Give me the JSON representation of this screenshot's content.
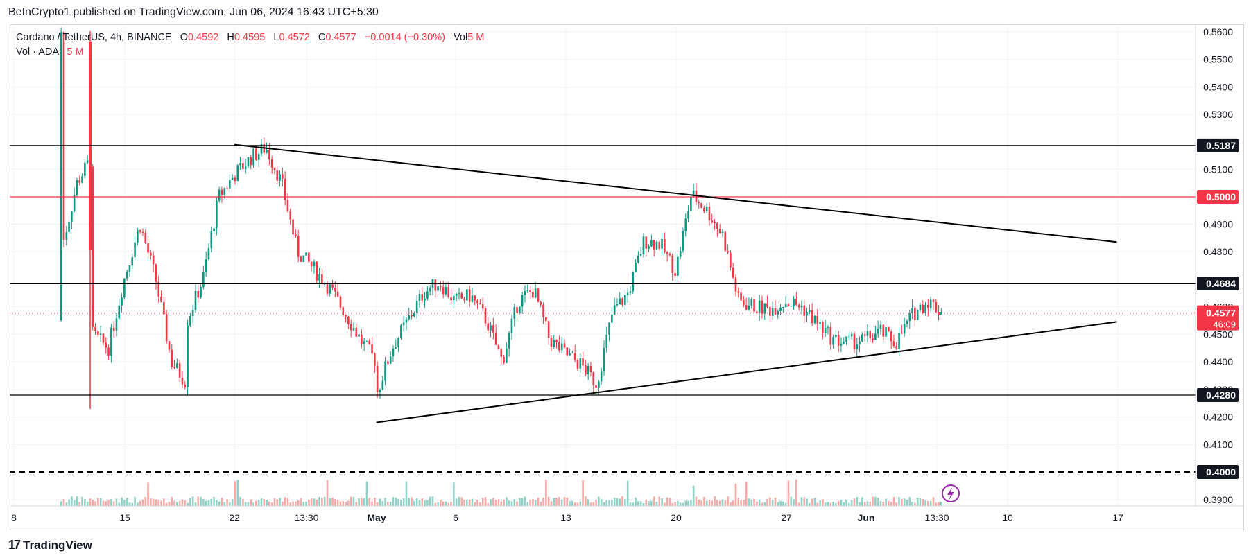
{
  "header": {
    "published": "BeInCrypto1 published on TradingView.com, Jun 06, 2024 16:43 UTC+5:30"
  },
  "legend": {
    "symbol": "Cardano / TetherUS, 4h, BINANCE",
    "o_label": "O",
    "o_value": "0.4592",
    "h_label": "H",
    "h_value": "0.4595",
    "l_label": "L",
    "l_value": "0.4572",
    "c_label": "C",
    "c_value": "0.4577",
    "change": "−0.0014 (−0.30%)",
    "vol_label": "Vol",
    "vol_value": "5 M",
    "vol_line_label": "Vol · ADA",
    "vol_line_value": "5 M"
  },
  "footer": {
    "brand": "TradingView",
    "logo_mark": "17"
  },
  "colors": {
    "up": "#089981",
    "down": "#f23645",
    "level_red": "#f23645",
    "black": "#000000",
    "grid": "#f0f3fa"
  },
  "chart_data": {
    "type": "candlestick",
    "symbol": "Cardano / TetherUS",
    "interval": "4h",
    "exchange": "BINANCE",
    "ylim": [
      0.385,
      0.566
    ],
    "y_ticks": [
      "0.5600",
      "0.5500",
      "0.5400",
      "0.5300",
      "0.5100",
      "0.4900",
      "0.4800",
      "0.4600",
      "0.4500",
      "0.4400",
      "0.4300",
      "0.4200",
      "0.4100",
      "0.3900"
    ],
    "x_ticks": [
      "8",
      "15",
      "22",
      "13:30",
      "May",
      "6",
      "13",
      "20",
      "27",
      "Jun",
      "13:30",
      "10",
      "17"
    ],
    "horizontal_levels": [
      {
        "price": 0.5187,
        "label": "0.5187",
        "color": "#000000",
        "style": "solid"
      },
      {
        "price": 0.5,
        "label": "0.5000",
        "color": "#f23645",
        "style": "solid"
      },
      {
        "price": 0.4684,
        "label": "0.4684",
        "color": "#000000",
        "style": "solid-thick"
      },
      {
        "price": 0.428,
        "label": "0.4280",
        "color": "#000000",
        "style": "solid"
      },
      {
        "price": 0.4,
        "label": "0.4000",
        "color": "#000000",
        "style": "dashed"
      }
    ],
    "current_price": {
      "price": 0.4577,
      "label": "0.4577",
      "countdown": "46:09"
    },
    "trendlines": [
      {
        "name": "upper",
        "from": {
          "x": "Apr 22",
          "y": 0.519
        },
        "to": {
          "x": "Jun 17",
          "y": 0.4835
        }
      },
      {
        "name": "lower",
        "from": {
          "x": "May 1",
          "y": 0.418
        },
        "to": {
          "x": "Jun 17",
          "y": 0.4545
        }
      }
    ],
    "price_path": [
      [
        "Apr 11",
        0.455
      ],
      [
        "Apr 11",
        0.56
      ],
      [
        "Apr 11",
        0.48
      ],
      [
        "Apr 12",
        0.505
      ],
      [
        "Apr 13",
        0.515
      ],
      [
        "Apr 13",
        0.45
      ],
      [
        "Apr 14",
        0.445
      ],
      [
        "Apr 15",
        0.47
      ],
      [
        "Apr 16",
        0.49
      ],
      [
        "Apr 17",
        0.47
      ],
      [
        "Apr 18",
        0.44
      ],
      [
        "Apr 19",
        0.432
      ],
      [
        "Apr 19",
        0.455
      ],
      [
        "Apr 20",
        0.47
      ],
      [
        "Apr 21",
        0.5
      ],
      [
        "Apr 22",
        0.508
      ],
      [
        "Apr 23",
        0.514
      ],
      [
        "Apr 24",
        0.518
      ],
      [
        "Apr 25",
        0.505
      ],
      [
        "Apr 26",
        0.48
      ],
      [
        "Apr 27",
        0.474
      ],
      [
        "Apr 28",
        0.467
      ],
      [
        "Apr 29",
        0.458
      ],
      [
        "Apr 30",
        0.448
      ],
      [
        "May 1",
        0.44
      ],
      [
        "May 1",
        0.428
      ],
      [
        "May 2",
        0.445
      ],
      [
        "May 3",
        0.455
      ],
      [
        "May 4",
        0.465
      ],
      [
        "May 5",
        0.469
      ],
      [
        "May 6",
        0.462
      ],
      [
        "May 7",
        0.464
      ],
      [
        "May 8",
        0.455
      ],
      [
        "May 9",
        0.44
      ],
      [
        "May 10",
        0.462
      ],
      [
        "May 11",
        0.466
      ],
      [
        "May 12",
        0.448
      ],
      [
        "May 13",
        0.443
      ],
      [
        "May 14",
        0.439
      ],
      [
        "May 15",
        0.432
      ],
      [
        "May 16",
        0.458
      ],
      [
        "May 17",
        0.465
      ],
      [
        "May 18",
        0.484
      ],
      [
        "May 19",
        0.483
      ],
      [
        "May 20",
        0.473
      ],
      [
        "May 21",
        0.501
      ],
      [
        "May 22",
        0.495
      ],
      [
        "May 23",
        0.486
      ],
      [
        "May 24",
        0.462
      ],
      [
        "May 25",
        0.46
      ],
      [
        "May 26",
        0.459
      ],
      [
        "May 27",
        0.462
      ],
      [
        "May 28",
        0.46
      ],
      [
        "May 29",
        0.454
      ],
      [
        "May 30",
        0.448
      ],
      [
        "May 31",
        0.447
      ],
      [
        "Jun 1",
        0.448
      ],
      [
        "Jun 2",
        0.451
      ],
      [
        "Jun 3",
        0.447
      ],
      [
        "Jun 4",
        0.457
      ],
      [
        "Jun 5",
        0.462
      ],
      [
        "Jun 6",
        0.4577
      ]
    ]
  }
}
